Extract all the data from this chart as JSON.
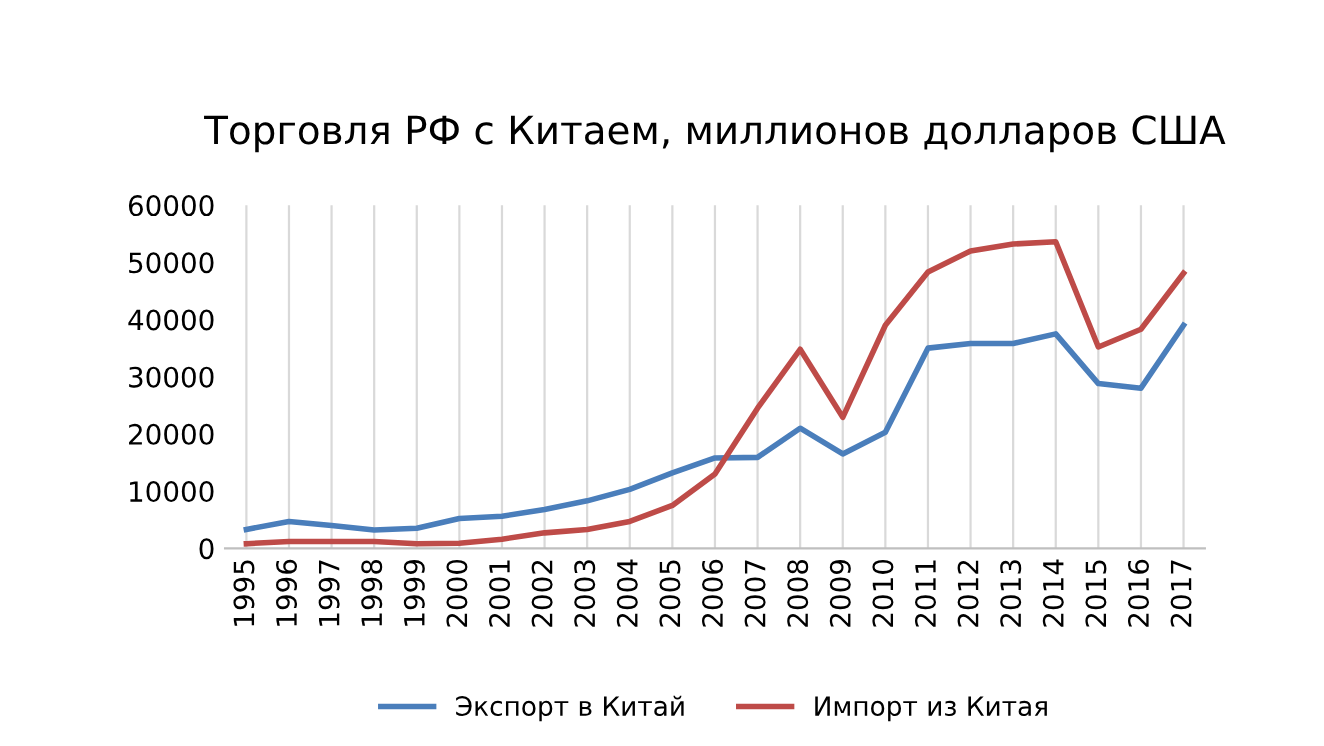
{
  "chart_data": {
    "type": "line",
    "title": "Торговля РФ с Китаем, миллионов долларов США",
    "categories": [
      "1995",
      "1996",
      "1997",
      "1998",
      "1999",
      "2000",
      "2001",
      "2002",
      "2003",
      "2004",
      "2005",
      "2006",
      "2007",
      "2008",
      "2009",
      "2010",
      "2011",
      "2012",
      "2013",
      "2014",
      "2015",
      "2016",
      "2017"
    ],
    "series": [
      {
        "name": "Экспорт в Китай",
        "color": "#4a7ebb",
        "values": [
          3300,
          4700,
          4000,
          3200,
          3500,
          5200,
          5600,
          6800,
          8300,
          10300,
          13200,
          15800,
          15900,
          21000,
          16500,
          20300,
          35000,
          35800,
          35800,
          37500,
          28800,
          28000,
          39000
        ]
      },
      {
        "name": "Импорт из Китая",
        "color": "#be4b48",
        "values": [
          800,
          1200,
          1200,
          1200,
          800,
          900,
          1600,
          2700,
          3300,
          4700,
          7500,
          13000,
          24500,
          34800,
          22900,
          39000,
          48300,
          52000,
          53200,
          53600,
          35200,
          38300,
          48100
        ]
      }
    ],
    "ylim": [
      0,
      60000
    ],
    "yticks": [
      0,
      10000,
      20000,
      30000,
      40000,
      50000,
      60000
    ],
    "grid": "x",
    "legend": "bottom",
    "marker": "none",
    "line_style": "solid"
  }
}
